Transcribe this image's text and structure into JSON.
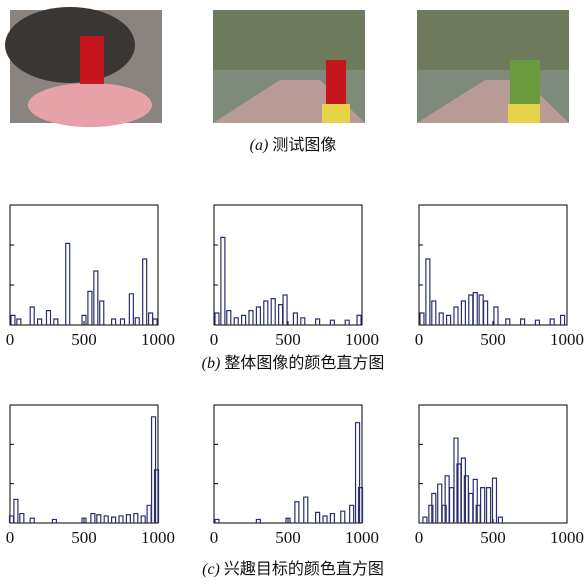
{
  "captions": [
    {
      "label": "(a)",
      "text": "测试图像"
    },
    {
      "label": "(b)",
      "text": "整体图像的颜色直方图"
    },
    {
      "label": "(c)",
      "text": "兴趣目标的颜色直方图"
    }
  ],
  "chart_data": [
    {
      "type": "bar",
      "x": [
        20,
        60,
        150,
        200,
        260,
        310,
        390,
        500,
        540,
        580,
        620,
        700,
        760,
        820,
        860,
        910,
        950,
        980
      ],
      "values": [
        0.08,
        0.05,
        0.15,
        0.05,
        0.12,
        0.05,
        0.68,
        0.08,
        0.28,
        0.45,
        0.2,
        0.05,
        0.05,
        0.26,
        0.06,
        0.55,
        0.1,
        0.05
      ],
      "color": "#2b2f6e",
      "xlim": [
        0,
        1000
      ],
      "xticks": [
        0,
        500,
        1000
      ],
      "ylim": [
        0,
        1
      ]
    },
    {
      "type": "bar",
      "x": [
        20,
        60,
        100,
        150,
        200,
        250,
        300,
        350,
        400,
        450,
        480,
        550,
        600,
        700,
        800,
        900,
        980
      ],
      "values": [
        0.1,
        0.73,
        0.12,
        0.06,
        0.08,
        0.12,
        0.15,
        0.2,
        0.22,
        0.17,
        0.25,
        0.1,
        0.06,
        0.05,
        0.04,
        0.04,
        0.08
      ],
      "color": "#2b2f6e",
      "xlim": [
        0,
        1000
      ],
      "xticks": [
        0,
        500,
        1000
      ],
      "ylim": [
        0,
        1
      ]
    },
    {
      "type": "bar",
      "x": [
        20,
        60,
        100,
        150,
        200,
        250,
        300,
        350,
        380,
        420,
        450,
        520,
        600,
        700,
        800,
        900,
        970
      ],
      "values": [
        0.1,
        0.55,
        0.2,
        0.1,
        0.08,
        0.15,
        0.2,
        0.25,
        0.27,
        0.25,
        0.2,
        0.15,
        0.05,
        0.05,
        0.04,
        0.05,
        0.08
      ],
      "color": "#2b2f6e",
      "xlim": [
        0,
        1000
      ],
      "xticks": [
        0,
        500,
        1000
      ],
      "ylim": [
        0,
        1
      ]
    },
    {
      "type": "bar",
      "x": [
        10,
        40,
        80,
        150,
        300,
        500,
        560,
        600,
        650,
        700,
        750,
        800,
        850,
        900,
        940,
        970,
        990
      ],
      "values": [
        0.06,
        0.2,
        0.08,
        0.04,
        0.03,
        0.04,
        0.08,
        0.07,
        0.06,
        0.05,
        0.06,
        0.07,
        0.08,
        0.06,
        0.15,
        0.9,
        0.45
      ],
      "color": "#2b2f6e",
      "xlim": [
        0,
        1000
      ],
      "xticks": [
        0,
        500,
        1000
      ],
      "ylim": [
        0,
        1
      ]
    },
    {
      "type": "bar",
      "x": [
        20,
        300,
        500,
        560,
        620,
        700,
        750,
        800,
        870,
        930,
        970,
        990
      ],
      "values": [
        0.03,
        0.03,
        0.04,
        0.18,
        0.22,
        0.09,
        0.06,
        0.08,
        0.1,
        0.15,
        0.85,
        0.3
      ],
      "color": "#2b2f6e",
      "xlim": [
        0,
        1000
      ],
      "xticks": [
        0,
        500,
        1000
      ],
      "ylim": [
        0,
        1
      ]
    },
    {
      "type": "bar",
      "x": [
        40,
        80,
        100,
        140,
        170,
        190,
        220,
        250,
        270,
        300,
        320,
        350,
        380,
        400,
        430,
        470,
        510,
        550
      ],
      "values": [
        0.05,
        0.15,
        0.25,
        0.33,
        0.15,
        0.4,
        0.3,
        0.72,
        0.5,
        0.55,
        0.4,
        0.25,
        0.37,
        0.15,
        0.3,
        0.3,
        0.38,
        0.05
      ],
      "color": "#2b2f6e",
      "xlim": [
        0,
        1000
      ],
      "xticks": [
        0,
        500,
        1000
      ],
      "ylim": [
        0,
        1
      ]
    }
  ]
}
